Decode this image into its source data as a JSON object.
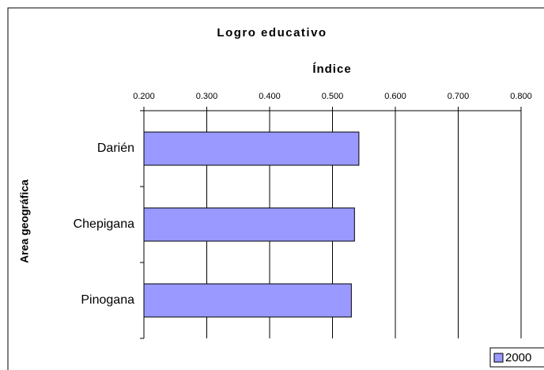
{
  "chart_data": {
    "type": "barh",
    "title": "Logro educativo",
    "xlabel": "Índice",
    "ylabel": "Area geográfica",
    "categories": [
      "Darién",
      "Chepigana",
      "Pinogana"
    ],
    "series": [
      {
        "name": "2000",
        "color": "#9999ff",
        "values": [
          0.542,
          0.535,
          0.53
        ]
      }
    ],
    "xlim": [
      0.2,
      0.8
    ],
    "xticks": [
      {
        "value": 0.2,
        "label": "0.200"
      },
      {
        "value": 0.3,
        "label": "0.300"
      },
      {
        "value": 0.4,
        "label": "0.400"
      },
      {
        "value": 0.5,
        "label": "0.500"
      },
      {
        "value": 0.6,
        "label": "0.600"
      },
      {
        "value": 0.7,
        "label": "0.700"
      },
      {
        "value": 0.8,
        "label": "0.800"
      }
    ],
    "grid": true,
    "legend": "bottom-right"
  }
}
